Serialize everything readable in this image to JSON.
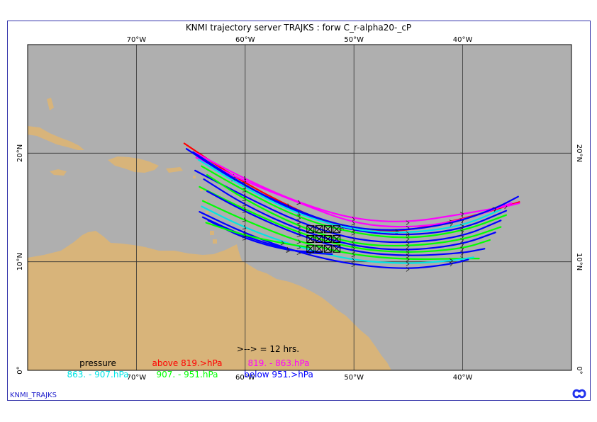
{
  "title": "KNMI trajectory server TRAJKS : forw C_r-alpha20-_cP",
  "brand": "KNMI_TRAJKS",
  "lon_ticks": [
    {
      "label": "70°W",
      "lon": -70
    },
    {
      "label": "60°W",
      "lon": -60
    },
    {
      "label": "50°W",
      "lon": -50
    },
    {
      "label": "40°W",
      "lon": -40
    }
  ],
  "lat_ticks": [
    {
      "label": "20°N",
      "lat": 20
    },
    {
      "label": "10°N",
      "lat": 10
    },
    {
      "label": "0°",
      "lat": 0
    }
  ],
  "map_extent": {
    "lon_min": -80,
    "lon_max": -30,
    "lat_min": 0,
    "lat_max": 30
  },
  "colors": {
    "ocean": "#afafaf",
    "land": "#d8b47a",
    "grid": "#333333",
    "frame": "#3333aa"
  },
  "legend": {
    "interval_note": ">--> = 12 hrs.",
    "pressure_label": "pressure",
    "bins": [
      {
        "label": "above 819.>hPa",
        "color": "#ff0000"
      },
      {
        "label": "819. -  863.hPa",
        "color": "#ff00ff"
      },
      {
        "label": "863. -  907.hPa",
        "color": "#00e5e5"
      },
      {
        "label": "907. -  951.hPa",
        "color": "#00ff00"
      },
      {
        "label": "below 951.>hPa",
        "color": "#0000ff"
      }
    ]
  },
  "trajectories": [
    {
      "color": "#ff0000",
      "points": [
        [
          -65.6,
          20.9
        ],
        [
          -61,
          17.8
        ],
        [
          -56,
          15.1
        ],
        [
          -51,
          13.0
        ],
        [
          -46,
          12.7
        ],
        [
          -41,
          13.7
        ],
        [
          -37,
          14.8
        ],
        [
          -34.8,
          15.5
        ]
      ]
    },
    {
      "color": "#ff00ff",
      "points": [
        [
          -64.5,
          20.0
        ],
        [
          -60,
          17.6
        ],
        [
          -55,
          15.4
        ],
        [
          -50,
          13.9
        ],
        [
          -45,
          13.6
        ],
        [
          -40,
          14.4
        ],
        [
          -36,
          15.1
        ],
        [
          -34.8,
          15.4
        ]
      ]
    },
    {
      "color": "#ff00ff",
      "points": [
        [
          -64.5,
          19.6
        ],
        [
          -60,
          17.4
        ],
        [
          -55,
          15.4
        ],
        [
          -50,
          13.5
        ],
        [
          -45,
          13.1
        ],
        [
          -40,
          13.8
        ],
        [
          -35.5,
          15.4
        ]
      ]
    },
    {
      "color": "#0000ff",
      "points": [
        [
          -65.4,
          20.4
        ],
        [
          -61,
          17.5
        ],
        [
          -56,
          15.0
        ],
        [
          -51,
          13.2
        ],
        [
          -46,
          12.8
        ],
        [
          -41,
          13.5
        ],
        [
          -37,
          14.9
        ],
        [
          -34.9,
          16.0
        ]
      ]
    },
    {
      "color": "#0000ff",
      "points": [
        [
          -64.8,
          20.1
        ],
        [
          -60,
          17.0
        ],
        [
          -55,
          14.4
        ],
        [
          -50,
          12.8
        ],
        [
          -45,
          12.4
        ],
        [
          -40,
          13.0
        ],
        [
          -36,
          14.7
        ]
      ]
    },
    {
      "color": "#00e5e5",
      "points": [
        [
          -64.3,
          19.4
        ],
        [
          -60,
          16.8
        ],
        [
          -55,
          14.3
        ],
        [
          -50,
          12.9
        ],
        [
          -45,
          12.6
        ],
        [
          -40,
          13.3
        ],
        [
          -36.5,
          14.8
        ]
      ]
    },
    {
      "color": "#00ff00",
      "points": [
        [
          -64.0,
          18.8
        ],
        [
          -60,
          16.5
        ],
        [
          -55,
          14.0
        ],
        [
          -50,
          12.6
        ],
        [
          -45,
          12.1
        ],
        [
          -40,
          12.8
        ],
        [
          -36,
          14.3
        ]
      ]
    },
    {
      "color": "#0000ff",
      "points": [
        [
          -64.6,
          18.4
        ],
        [
          -60,
          16.0
        ],
        [
          -55,
          13.6
        ],
        [
          -50,
          12.0
        ],
        [
          -45,
          11.7
        ],
        [
          -40,
          12.3
        ],
        [
          -36.5,
          13.8
        ]
      ]
    },
    {
      "color": "#00ff00",
      "points": [
        [
          -63.5,
          18.0
        ],
        [
          -60,
          15.7
        ],
        [
          -55,
          13.2
        ],
        [
          -50,
          11.6
        ],
        [
          -45,
          11.4
        ],
        [
          -40,
          12.0
        ],
        [
          -36.5,
          13.2
        ]
      ]
    },
    {
      "color": "#0000ff",
      "points": [
        [
          -63.8,
          17.6
        ],
        [
          -60,
          15.2
        ],
        [
          -55,
          12.9
        ],
        [
          -50,
          11.4
        ],
        [
          -45,
          11.0
        ],
        [
          -40,
          11.6
        ],
        [
          -37,
          12.7
        ]
      ]
    },
    {
      "color": "#00ff00",
      "points": [
        [
          -64.2,
          16.9
        ],
        [
          -60,
          14.8
        ],
        [
          -55,
          12.6
        ],
        [
          -50,
          11.2
        ],
        [
          -45,
          10.8
        ],
        [
          -40,
          11.2
        ],
        [
          -37.5,
          12.0
        ]
      ]
    },
    {
      "color": "#0000ff",
      "points": [
        [
          -63.5,
          16.5
        ],
        [
          -60,
          14.6
        ],
        [
          -55,
          12.4
        ],
        [
          -50,
          10.9
        ],
        [
          -45,
          10.5
        ],
        [
          -40,
          10.8
        ],
        [
          -38,
          11.2
        ]
      ]
    },
    {
      "color": "#00ff00",
      "points": [
        [
          -63.9,
          15.6
        ],
        [
          -60,
          13.8
        ],
        [
          -55,
          11.8
        ],
        [
          -50,
          10.6
        ],
        [
          -45,
          10.2
        ],
        [
          -40,
          10.3
        ],
        [
          -38.5,
          10.3
        ]
      ]
    },
    {
      "color": "#00e5e5",
      "points": [
        [
          -64.0,
          15.1
        ],
        [
          -60,
          13.1
        ],
        [
          -55,
          11.3
        ],
        [
          -50,
          10.1
        ],
        [
          -45,
          9.8
        ],
        [
          -41,
          10.1
        ],
        [
          -39,
          10.4
        ]
      ]
    },
    {
      "color": "#0000ff",
      "points": [
        [
          -64.2,
          14.6
        ],
        [
          -60,
          12.6
        ],
        [
          -55,
          10.8
        ],
        [
          -50,
          9.7
        ],
        [
          -45,
          9.3
        ],
        [
          -41,
          9.8
        ],
        [
          -39.5,
          10.2
        ]
      ]
    },
    {
      "color": "#0000ff",
      "points": [
        [
          -63.9,
          14.1
        ],
        [
          -60,
          12.3
        ],
        [
          -56,
          11.1
        ],
        [
          -54,
          10.8
        ],
        [
          -52,
          10.7
        ]
      ]
    },
    {
      "color": "#0000ff",
      "points": [
        [
          -63.4,
          13.8
        ],
        [
          -60,
          12.1
        ],
        [
          -56,
          11.0
        ],
        [
          -53,
          10.9
        ]
      ]
    },
    {
      "color": "#00ff00",
      "points": [
        [
          -63.6,
          13.6
        ],
        [
          -60,
          12.4
        ],
        [
          -56.5,
          11.7
        ],
        [
          -54,
          11.3
        ]
      ]
    }
  ],
  "start_markers": [
    [
      -54.0,
      13.0
    ],
    [
      -53.2,
      13.0
    ],
    [
      -52.4,
      13.0
    ],
    [
      -51.6,
      13.0
    ],
    [
      -54.0,
      12.1
    ],
    [
      -53.2,
      12.1
    ],
    [
      -52.4,
      12.1
    ],
    [
      -51.6,
      12.1
    ],
    [
      -54.0,
      11.2
    ],
    [
      -53.2,
      11.2
    ],
    [
      -52.4,
      11.2
    ],
    [
      -51.6,
      11.2
    ]
  ]
}
